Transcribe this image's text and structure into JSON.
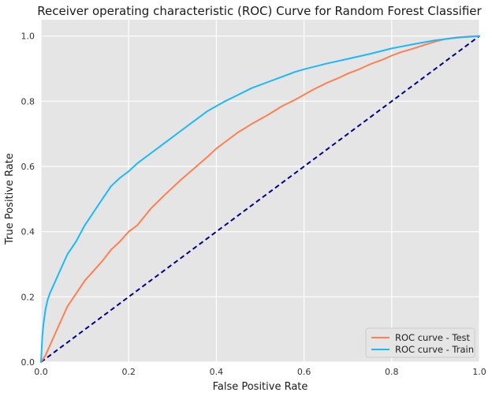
{
  "chart_data": {
    "type": "line",
    "title": "Receiver operating characteristic (ROC) Curve for Random Forest Classifier",
    "xlabel": "False Positive Rate",
    "ylabel": "True Positive Rate",
    "xlim": [
      0.0,
      1.0
    ],
    "ylim": [
      0.0,
      1.05
    ],
    "x_ticks": [
      "0.0",
      "0.2",
      "0.4",
      "0.6",
      "0.8",
      "1.0"
    ],
    "y_ticks": [
      "0.0",
      "0.2",
      "0.4",
      "0.6",
      "0.8",
      "1.0"
    ],
    "grid": true,
    "legend_position": "lower-right",
    "series": [
      {
        "name": "ROC curve - Test",
        "color": "#ff7f50",
        "style": "solid",
        "x": [
          0.0,
          0.005,
          0.01,
          0.02,
          0.03,
          0.04,
          0.05,
          0.06,
          0.08,
          0.1,
          0.12,
          0.14,
          0.16,
          0.18,
          0.2,
          0.22,
          0.25,
          0.28,
          0.3,
          0.32,
          0.35,
          0.38,
          0.4,
          0.42,
          0.45,
          0.48,
          0.5,
          0.52,
          0.55,
          0.58,
          0.6,
          0.62,
          0.65,
          0.68,
          0.7,
          0.72,
          0.75,
          0.78,
          0.8,
          0.82,
          0.85,
          0.88,
          0.9,
          0.92,
          0.95,
          0.98,
          1.0
        ],
        "y": [
          0.0,
          0.01,
          0.02,
          0.05,
          0.08,
          0.11,
          0.14,
          0.17,
          0.21,
          0.25,
          0.28,
          0.31,
          0.345,
          0.37,
          0.4,
          0.42,
          0.47,
          0.51,
          0.535,
          0.56,
          0.595,
          0.63,
          0.655,
          0.675,
          0.705,
          0.73,
          0.745,
          0.76,
          0.785,
          0.805,
          0.82,
          0.835,
          0.855,
          0.872,
          0.885,
          0.895,
          0.913,
          0.928,
          0.94,
          0.95,
          0.962,
          0.975,
          0.983,
          0.99,
          0.996,
          0.999,
          1.0
        ]
      },
      {
        "name": "ROC curve - Train",
        "color": "#1ab8ff",
        "style": "solid",
        "x": [
          0.0,
          0.003,
          0.006,
          0.01,
          0.015,
          0.02,
          0.03,
          0.04,
          0.05,
          0.06,
          0.08,
          0.1,
          0.12,
          0.14,
          0.16,
          0.18,
          0.2,
          0.22,
          0.25,
          0.28,
          0.3,
          0.32,
          0.35,
          0.38,
          0.4,
          0.42,
          0.45,
          0.48,
          0.5,
          0.52,
          0.55,
          0.58,
          0.6,
          0.65,
          0.7,
          0.75,
          0.8,
          0.85,
          0.9,
          0.95,
          1.0
        ],
        "y": [
          0.0,
          0.08,
          0.12,
          0.16,
          0.19,
          0.21,
          0.24,
          0.27,
          0.3,
          0.33,
          0.37,
          0.42,
          0.46,
          0.5,
          0.54,
          0.565,
          0.585,
          0.61,
          0.64,
          0.67,
          0.69,
          0.71,
          0.74,
          0.77,
          0.785,
          0.8,
          0.82,
          0.84,
          0.85,
          0.86,
          0.875,
          0.89,
          0.898,
          0.915,
          0.93,
          0.945,
          0.962,
          0.975,
          0.987,
          0.995,
          1.0
        ]
      },
      {
        "name": "",
        "color": "#00008b",
        "style": "dashed",
        "x": [
          0.0,
          1.0
        ],
        "y": [
          0.0,
          1.0
        ]
      }
    ]
  }
}
